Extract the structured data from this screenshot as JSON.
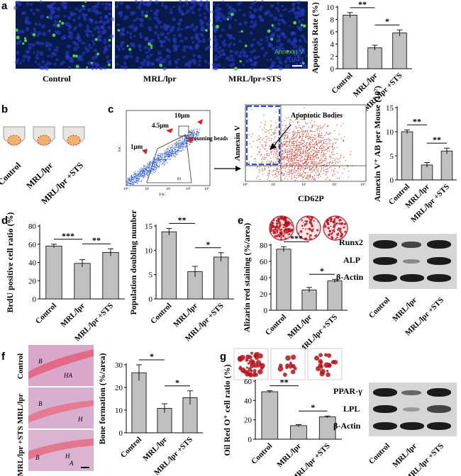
{
  "panels": {
    "a": {
      "label": "a",
      "image_labels": [
        "Control",
        "MRL/lpr",
        "MRL/lpr+STS"
      ],
      "legend": {
        "annexin": "Annexin V",
        "dapi": "DAPI"
      },
      "colors": {
        "annexin": "#4cd04c",
        "dapi": "#2a3ad0"
      }
    },
    "b": {
      "label": "b",
      "tube_labels": [
        "Control",
        "MRL/lpr",
        "MRL/lpr +STS"
      ]
    },
    "c": {
      "label": "c",
      "facs_left": {
        "x_axis": "FSC",
        "y_axis": "SSC",
        "annotations": [
          "10μm",
          "4.5μm",
          "counting beads",
          "1μm",
          "R2",
          "R1"
        ],
        "ticks": [
          "10⁰",
          "10¹",
          "10²",
          "10³",
          "10⁴"
        ]
      },
      "facs_right": {
        "x_axis": "CD62P",
        "y_axis": "Annexin V",
        "annotation": "Apoptotic Bodies",
        "ticks": [
          "10⁰",
          "10¹",
          "10²",
          "10³",
          "10⁴"
        ]
      }
    },
    "d": {
      "label": "d"
    },
    "e": {
      "label": "e",
      "blots": [
        "Runx2",
        "ALP",
        "β-Actin"
      ]
    },
    "f": {
      "label": "f",
      "histo_labels": [
        "Control",
        "MRL/lpr",
        "MRL/lpr +STS"
      ],
      "tissue_marks": [
        "B",
        "HA",
        "B",
        "H",
        "B",
        "H",
        "A"
      ]
    },
    "g": {
      "label": "g",
      "blots": [
        "PPAR-γ",
        "LPL",
        "β-Actin"
      ]
    }
  },
  "chart_data": [
    {
      "panel": "a",
      "type": "bar",
      "categories": [
        "Control",
        "MRL/lpr",
        "MRL/lpr +STS"
      ],
      "values": [
        8.7,
        3.4,
        5.8
      ],
      "errors": [
        0.4,
        0.4,
        0.5
      ],
      "ylabel": "Apoptosis Rate (%)",
      "ylim": [
        0,
        10
      ],
      "yticks": [
        0,
        2,
        4,
        6,
        8,
        10
      ],
      "significance": [
        "**",
        "*"
      ]
    },
    {
      "panel": "c",
      "type": "bar",
      "categories": [
        "Control",
        "MRL/lpr",
        "MRL/lpr +STS"
      ],
      "values": [
        10,
        3.1,
        6
      ],
      "errors": [
        0.4,
        0.5,
        0.6
      ],
      "ylabel": "Annexin V⁺ AB per Mouse (10⁷)",
      "ylim": [
        0,
        15
      ],
      "yticks": [
        0,
        5,
        10,
        15
      ],
      "significance": [
        "**",
        "**"
      ]
    },
    {
      "panel": "d1",
      "type": "bar",
      "categories": [
        "Control",
        "MRL/lpr",
        "MRL/lpr +STS"
      ],
      "values": [
        58,
        39,
        51
      ],
      "errors": [
        2,
        4,
        4
      ],
      "ylabel": "BrdU positive cell ratio (%)",
      "ylim": [
        0,
        80
      ],
      "yticks": [
        0,
        20,
        40,
        60,
        80
      ],
      "significance": [
        "***",
        "**"
      ]
    },
    {
      "panel": "d2",
      "type": "bar",
      "categories": [
        "Control",
        "MRL/lpr",
        "MRL/lpr +STS"
      ],
      "values": [
        13.8,
        5.6,
        8.6
      ],
      "errors": [
        0.7,
        1.1,
        0.9
      ],
      "ylabel": "Population doubling number",
      "ylim": [
        0,
        15
      ],
      "yticks": [
        0,
        5,
        10,
        15
      ],
      "significance": [
        "**",
        "*"
      ]
    },
    {
      "panel": "e",
      "type": "bar",
      "categories": [
        "Control",
        "MRL/lpr",
        "MRL/lpr +STS"
      ],
      "values": [
        75,
        25,
        36
      ],
      "errors": [
        3,
        3,
        2
      ],
      "ylabel": "Alizarin red staining (%/area)",
      "ylim": [
        0,
        80
      ],
      "yticks": [
        0,
        20,
        40,
        60,
        80
      ],
      "significance": [
        "***",
        "*"
      ]
    },
    {
      "panel": "f",
      "type": "bar",
      "categories": [
        "Control",
        "MRL/lpr",
        "MRL/lpr +STS"
      ],
      "values": [
        26.5,
        10.8,
        15.5
      ],
      "errors": [
        3.5,
        2,
        3
      ],
      "ylabel": "Bone formation (%/area)",
      "ylim": [
        0,
        30
      ],
      "yticks": [
        0,
        10,
        20,
        30
      ],
      "significance": [
        "*",
        "*"
      ]
    },
    {
      "panel": "g",
      "type": "bar",
      "categories": [
        "Control",
        "MRL/lpr",
        "MRL/lpr +STS"
      ],
      "values": [
        49,
        14,
        23
      ],
      "errors": [
        1,
        1,
        1
      ],
      "ylabel": "Oil Red O⁺ cell ratio (%)",
      "ylim": [
        0,
        60
      ],
      "yticks": [
        0,
        20,
        40,
        60
      ],
      "significance": [
        "**",
        "*"
      ]
    }
  ]
}
